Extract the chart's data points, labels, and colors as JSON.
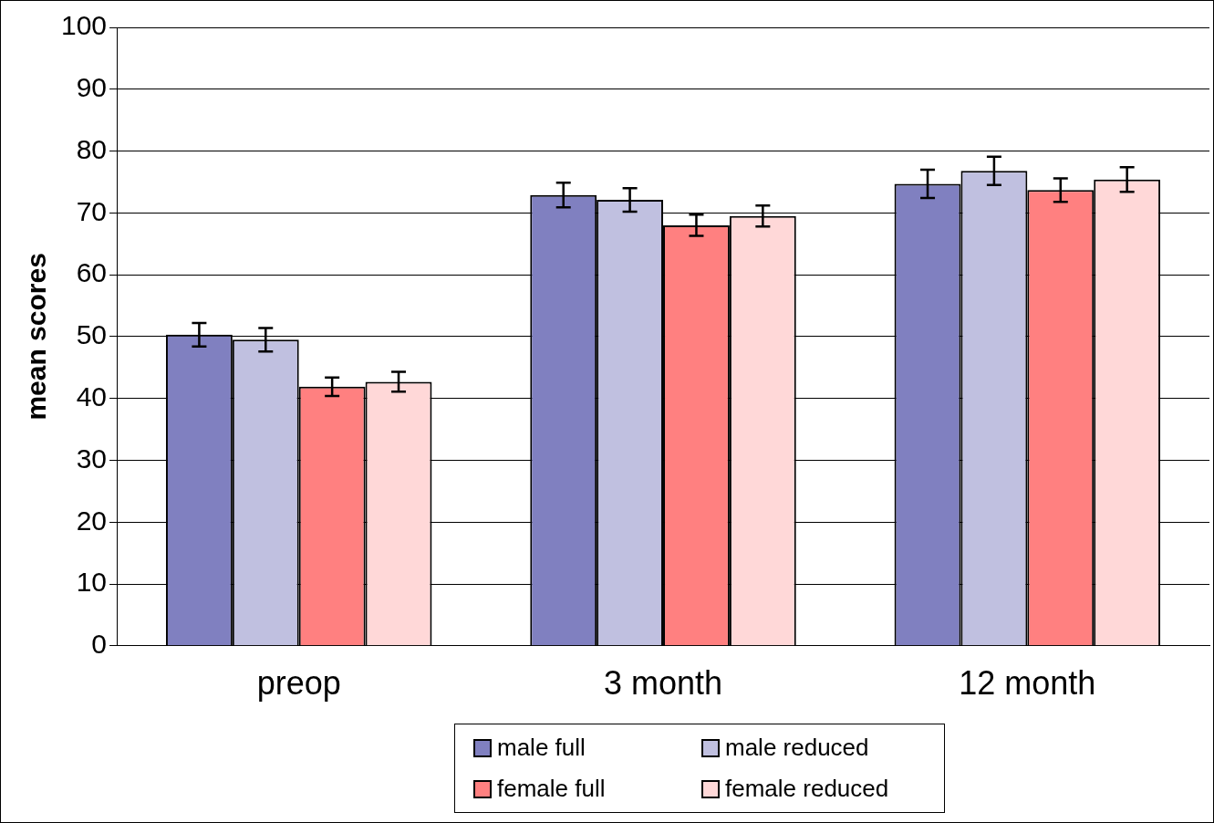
{
  "chart_data": {
    "type": "bar",
    "ylabel": "mean scores",
    "categories": [
      "preop",
      "3 month",
      "12 month"
    ],
    "series": [
      {
        "name": "male full",
        "color": "#8080c0",
        "values": [
          50.3,
          72.9,
          74.7
        ],
        "errors": [
          1.9,
          2.0,
          2.3
        ]
      },
      {
        "name": "male reduced",
        "color": "#c0c0e0",
        "values": [
          49.5,
          72.1,
          76.8
        ],
        "errors": [
          1.9,
          1.9,
          2.3
        ]
      },
      {
        "name": "female full",
        "color": "#ff8080",
        "values": [
          41.9,
          68.0,
          73.7
        ],
        "errors": [
          1.5,
          1.7,
          1.9
        ]
      },
      {
        "name": "female reduced",
        "color": "#ffd8d8",
        "values": [
          42.7,
          69.5,
          75.4
        ],
        "errors": [
          1.6,
          1.7,
          2.0
        ]
      }
    ],
    "ylim": [
      0,
      100
    ],
    "yticks": [
      0,
      10,
      20,
      30,
      40,
      50,
      60,
      70,
      80,
      90,
      100
    ],
    "grid": "y",
    "legend": "bottom"
  }
}
